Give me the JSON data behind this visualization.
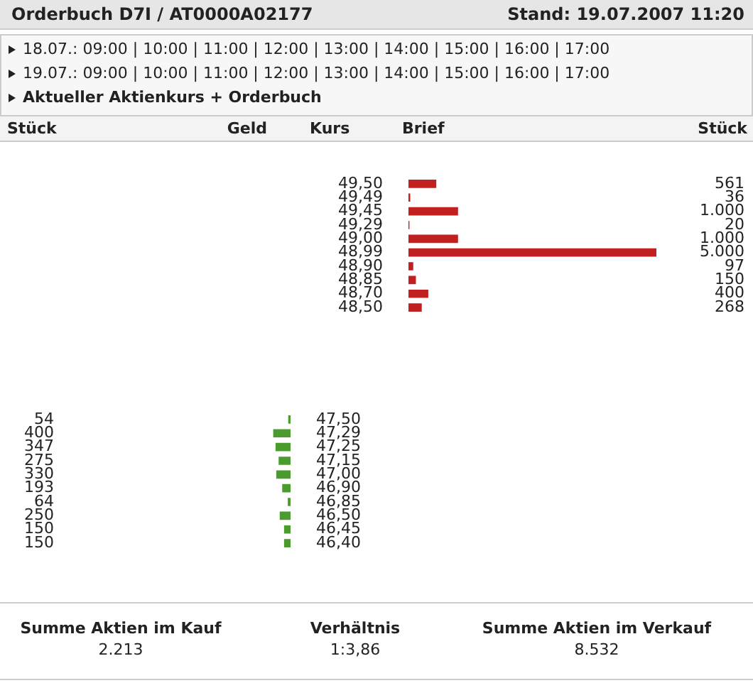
{
  "chart_data": [
    {
      "type": "other",
      "title": "Orderbuch D7I / AT0000A02177",
      "subtitle": "Stand: 19.07.2007 11:20",
      "annotations": [
        "18.07.: 09:00 | 10:00 | 11:00 | 12:00 | 13:00 | 14:00 | 15:00 | 16:00 | 17:00",
        "19.07.: 09:00 | 10:00 | 11:00 | 12:00 | 13:00 | 14:00 | 15:00 | 16:00 | 17:00",
        "Aktueller Aktienkurs + Orderbuch",
        "Stück",
        "Geld",
        "Kurs",
        "Brief",
        "Stück"
      ]
    },
    {
      "type": "bar",
      "orientation": "horizontal",
      "categories": [
        "49,50",
        "49,49",
        "49,45",
        "49,29",
        "49,00",
        "48,99",
        "48,90",
        "48,85",
        "48,70",
        "48,50"
      ],
      "values": [
        561,
        36,
        1000,
        20,
        1000,
        5000,
        97,
        150,
        400,
        268
      ],
      "value_labels": [
        "561",
        "36",
        "1.000",
        "20",
        "1.000",
        "5.000",
        "97",
        "150",
        "400",
        "268"
      ],
      "color": "#c0201f",
      "grid": false,
      "legend": false
    },
    {
      "type": "bar",
      "orientation": "horizontal",
      "categories": [
        "47,50",
        "47,29",
        "47,25",
        "47,15",
        "47,00",
        "46,90",
        "46,85",
        "46,50",
        "46,45",
        "46,40"
      ],
      "values": [
        54,
        400,
        347,
        275,
        330,
        193,
        64,
        250,
        150,
        150
      ],
      "value_labels": [
        "54",
        "400",
        "347",
        "275",
        "330",
        "193",
        "64",
        "250",
        "150",
        "150"
      ],
      "color": "#4a9c2f",
      "grid": false,
      "legend": false
    },
    {
      "type": "other",
      "annotations": [
        "Summe Aktien im Kauf",
        "2.213",
        "Verhältnis",
        "1:3,86",
        "Summe Aktien im Verkauf",
        "8.532"
      ]
    }
  ]
}
